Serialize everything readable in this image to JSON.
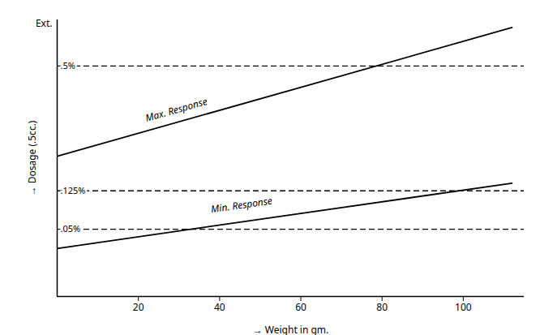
{
  "chart_data": {
    "type": "line",
    "xlabel": "→ Weight in gm.",
    "ylabel": "→ Dosage (.5cc.)",
    "xlim": [
      0,
      115
    ],
    "ylim": [
      -0.1,
      0.62
    ],
    "xticks": [
      20,
      40,
      60,
      80,
      100
    ],
    "tick_labels": "x",
    "grid": false,
    "series": [
      {
        "name": "Max. Response",
        "color": "#000000",
        "x": [
          0,
          112
        ],
        "values": [
          0.265,
          0.6
        ],
        "label_x": 22,
        "label_y": 0.355
      },
      {
        "name": "Min. Response",
        "color": "#000000",
        "x": [
          0,
          112
        ],
        "values": [
          0.025,
          0.195
        ],
        "label_x": 38,
        "label_y": 0.118
      }
    ],
    "reference_lines": [
      {
        "y": 0.5,
        "label": ".5%",
        "color": "#000000",
        "line_style": "dashed"
      },
      {
        "y": 0.175,
        "label": ".125%",
        "color": "#000000",
        "line_style": "dashed"
      },
      {
        "y": 0.075,
        "label": ".05%",
        "color": "#000000",
        "line_style": "dashed"
      }
    ],
    "annotations": [
      {
        "text": "Ext."
      }
    ]
  }
}
